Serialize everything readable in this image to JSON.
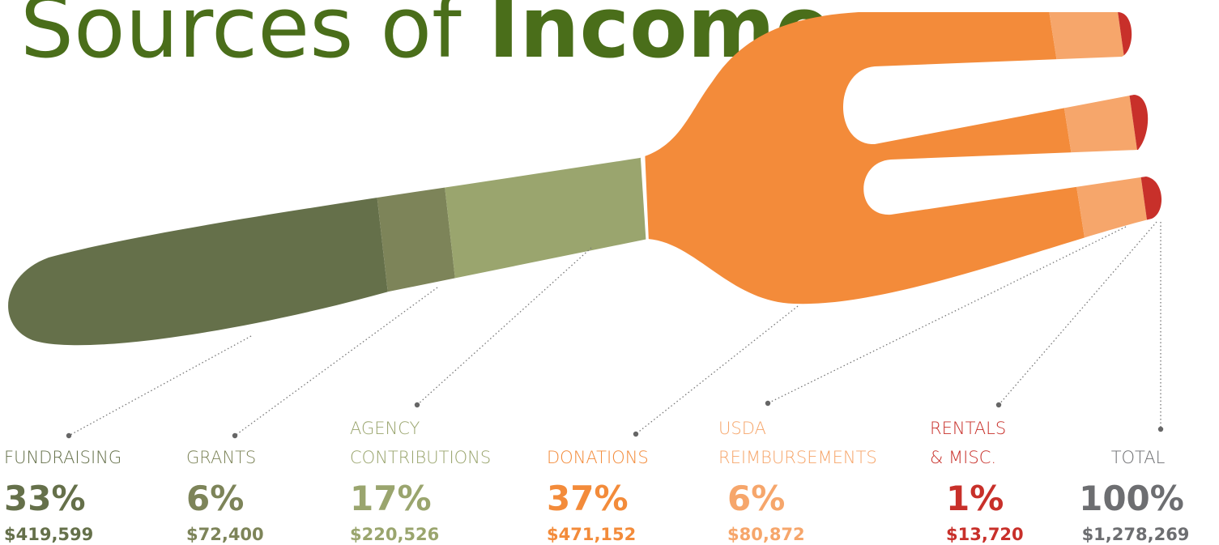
{
  "header": {
    "title_light": "Sources of",
    "title_bold": "Income"
  },
  "items": [
    {
      "label": [
        "FUNDRAISING"
      ],
      "percent": "33%",
      "amount": "$419,599",
      "color": "#65704a"
    },
    {
      "label": [
        "GRANTS"
      ],
      "percent": "6%",
      "amount": "$72,400",
      "color": "#7d8459"
    },
    {
      "label": [
        "AGENCY",
        "CONTRIBUTIONS"
      ],
      "percent": "17%",
      "amount": "$220,526",
      "color": "#9aa56e"
    },
    {
      "label": [
        "DONATIONS"
      ],
      "percent": "37%",
      "amount": "$471,152",
      "color": "#f38b3a"
    },
    {
      "label": [
        "USDA",
        "REIMBURSEMENTS"
      ],
      "percent": "6%",
      "amount": "$80,872",
      "color": "#f6a66b"
    },
    {
      "label": [
        "RENTALS",
        "& MISC."
      ],
      "percent": "1%",
      "amount": "$13,720",
      "color": "#c8302a"
    },
    {
      "label": [
        "TOTAL"
      ],
      "percent": "100%",
      "amount": "$1,278,269",
      "color": "#6d6e71"
    }
  ]
}
